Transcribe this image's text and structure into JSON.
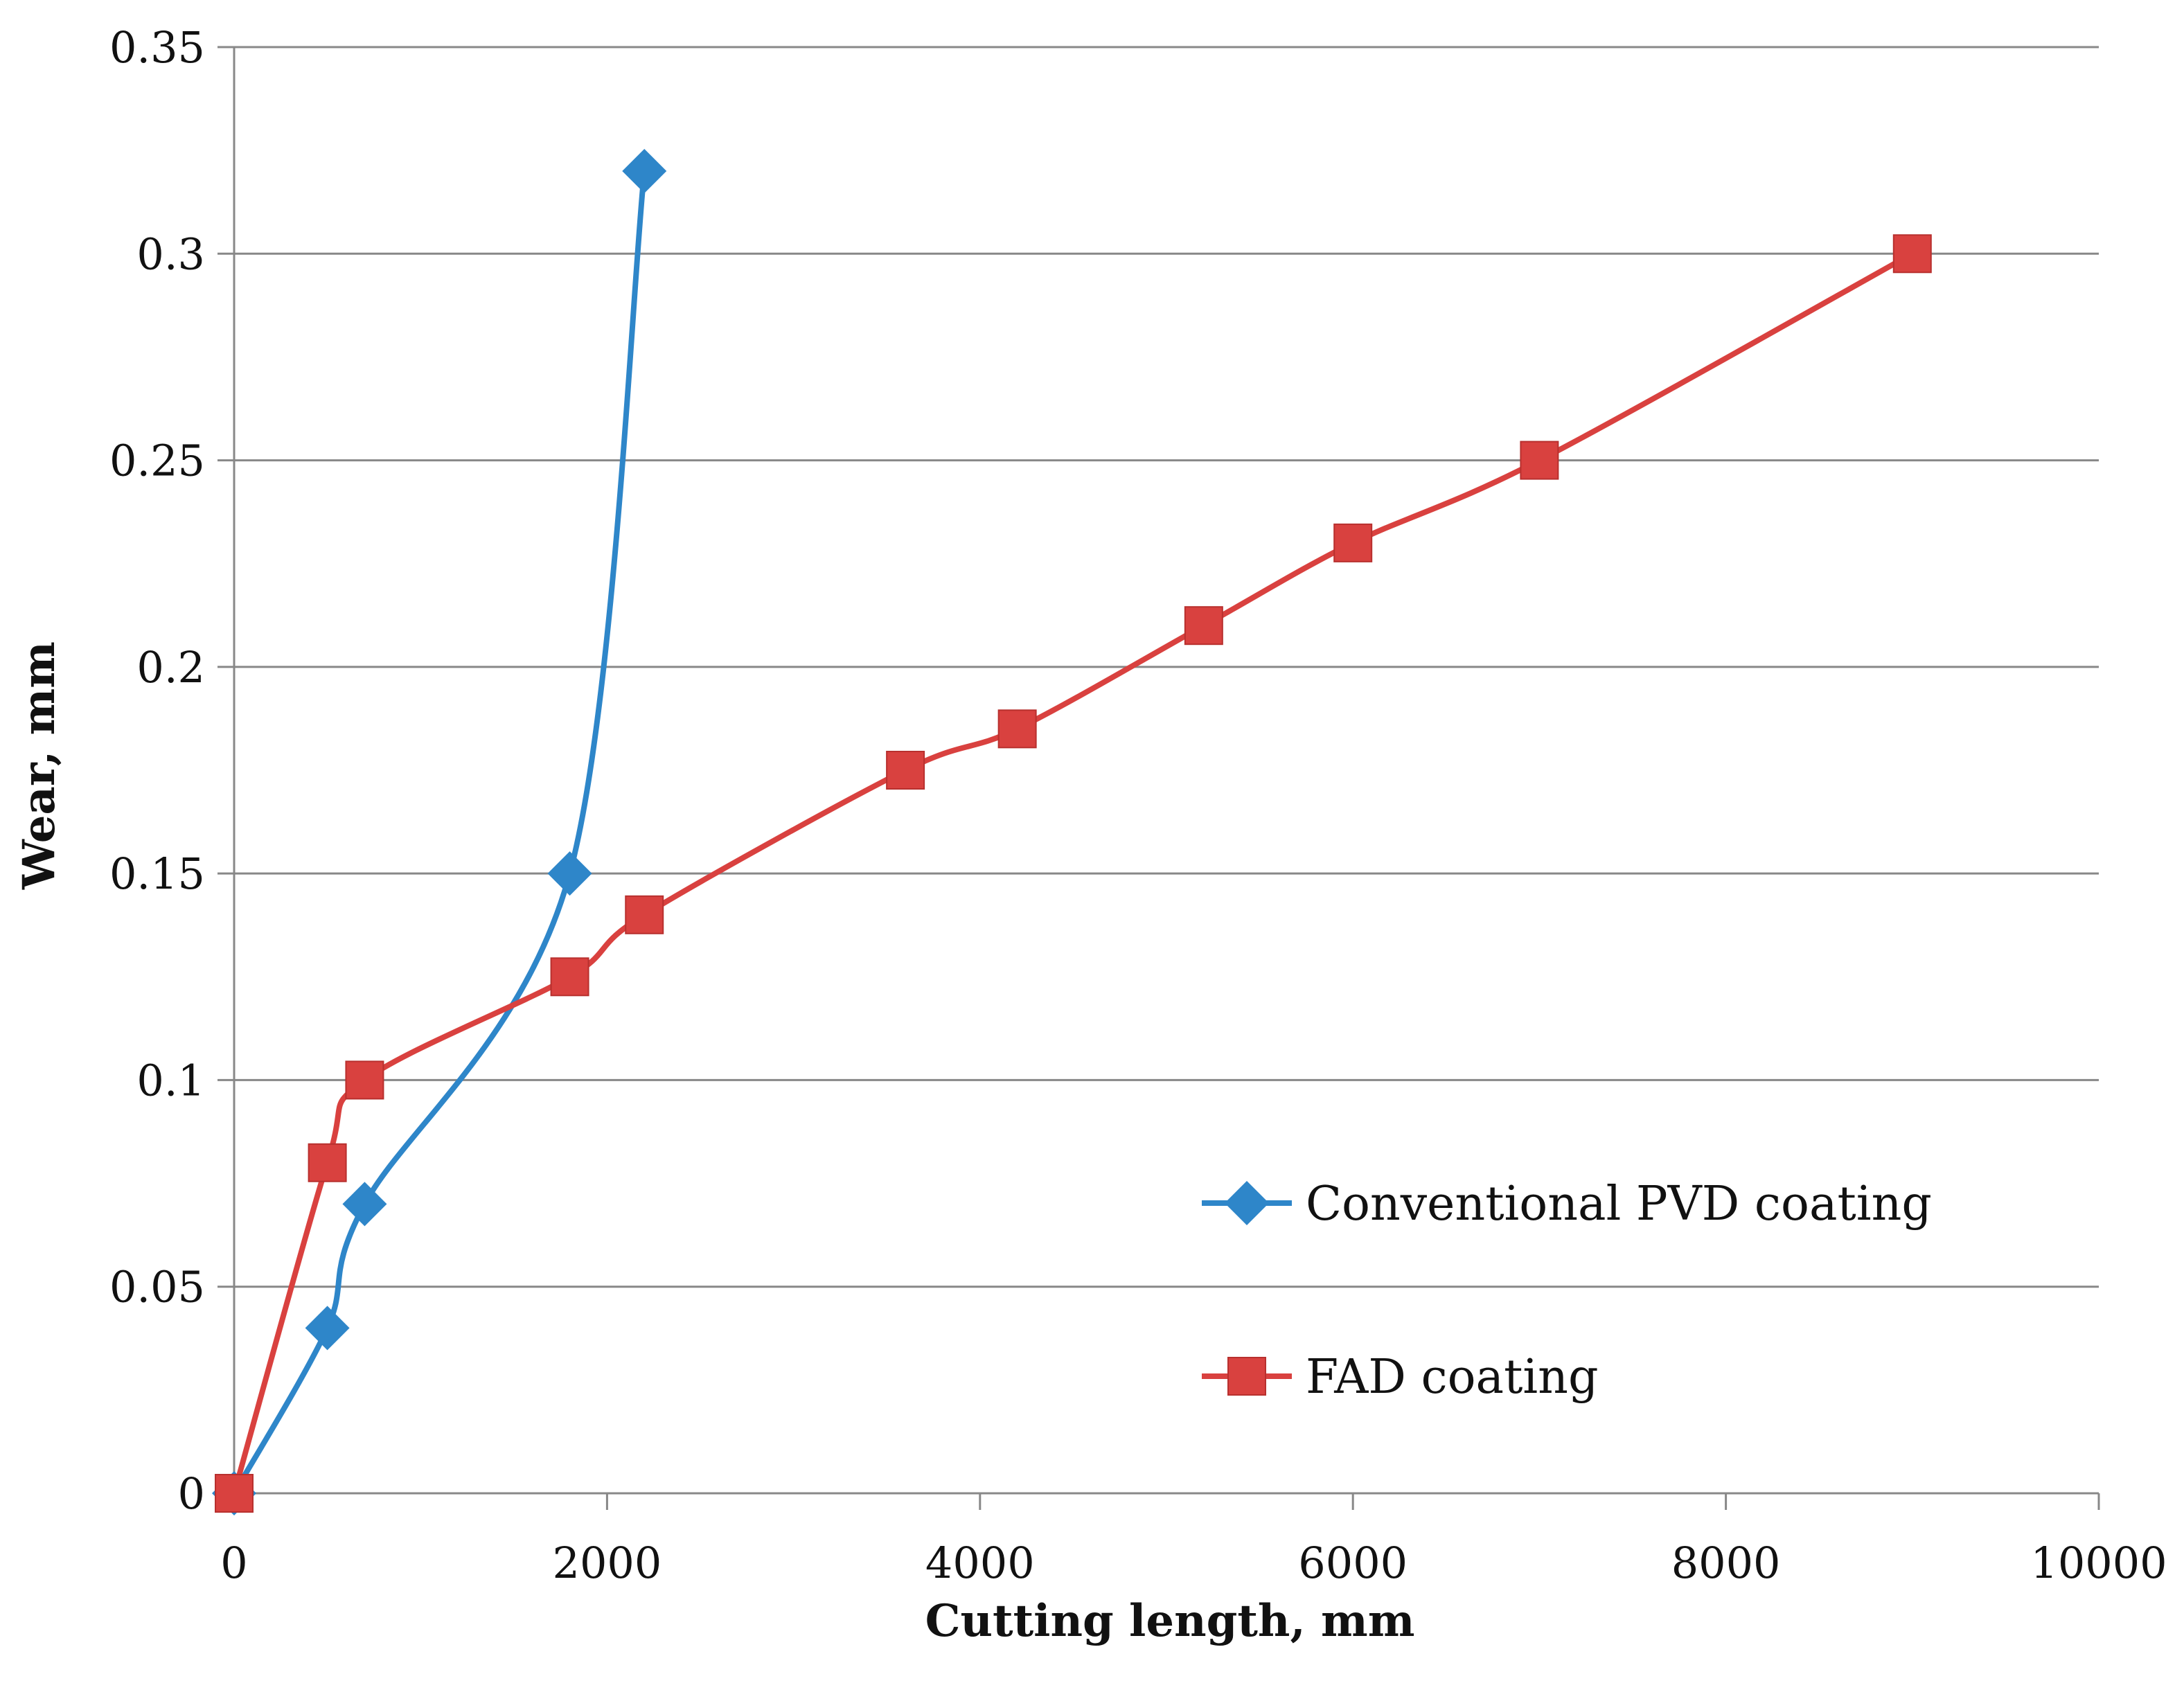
{
  "chart_data": {
    "type": "line",
    "title": "",
    "xlabel": "Cutting length, mm",
    "ylabel": "Wear, mm",
    "xlim": [
      0,
      10000
    ],
    "ylim": [
      0,
      0.35
    ],
    "x_ticks": [
      "0",
      "2000",
      "4000",
      "6000",
      "8000",
      "10000"
    ],
    "y_ticks": [
      "0",
      "0.05",
      "0.1",
      "0.15",
      "0.2",
      "0.25",
      "0.3",
      "0.35"
    ],
    "grid": true,
    "legend_position": "right-middle",
    "series": [
      {
        "name": "Conventional PVD coating",
        "color": "#2E86C9",
        "marker": "diamond",
        "x": [
          0,
          500,
          700,
          1800,
          2200
        ],
        "y": [
          0,
          0.04,
          0.07,
          0.15,
          0.32
        ]
      },
      {
        "name": "FAD coating",
        "color": "#D9413F",
        "marker": "square",
        "x": [
          0,
          500,
          700,
          1800,
          2200,
          3600,
          4200,
          5200,
          6000,
          7000,
          9000
        ],
        "y": [
          0,
          0.08,
          0.1,
          0.125,
          0.14,
          0.175,
          0.185,
          0.21,
          0.23,
          0.25,
          0.3
        ]
      }
    ]
  }
}
